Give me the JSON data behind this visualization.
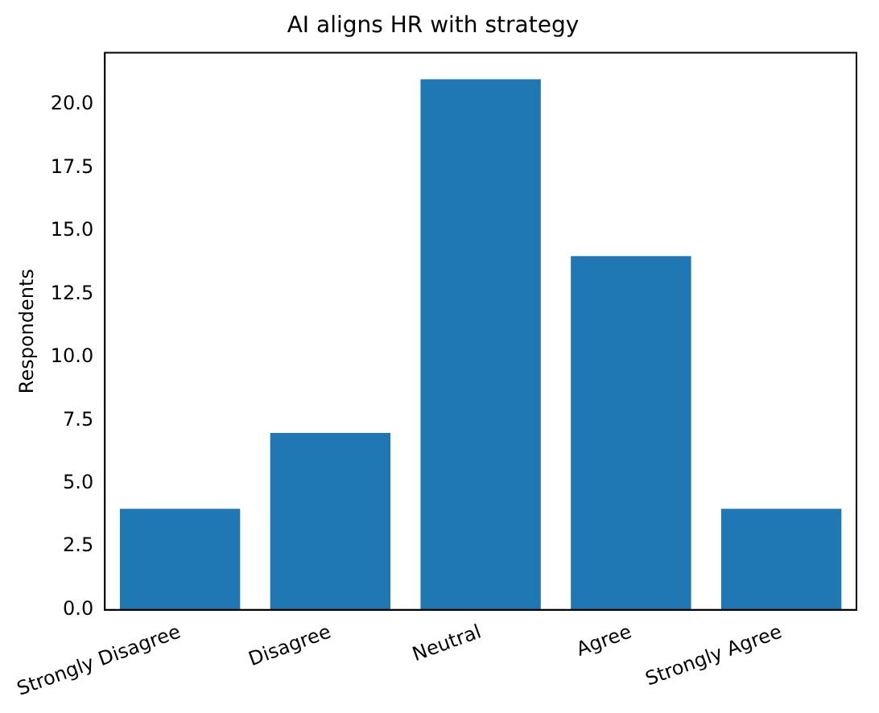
{
  "chart_data": {
    "type": "bar",
    "title": "AI aligns HR with strategy",
    "ylabel": "Respondents",
    "categories": [
      "Strongly Disagree",
      "Disagree",
      "Neutral",
      "Agree",
      "Strongly Agree"
    ],
    "values": [
      4,
      7,
      21,
      14,
      4
    ],
    "color": "#1f77b4",
    "ylim": [
      0,
      22.05
    ],
    "yticks": [
      {
        "value": 0,
        "label": "0.0"
      },
      {
        "value": 2.5,
        "label": "2.5"
      },
      {
        "value": 5,
        "label": "5.0"
      },
      {
        "value": 7.5,
        "label": "7.5"
      },
      {
        "value": 10,
        "label": "10.0"
      },
      {
        "value": 12.5,
        "label": "12.5"
      },
      {
        "value": 15,
        "label": "15.0"
      },
      {
        "value": 17.5,
        "label": "17.5"
      },
      {
        "value": 20,
        "label": "20.0"
      }
    ],
    "grid": false,
    "legend": false
  }
}
